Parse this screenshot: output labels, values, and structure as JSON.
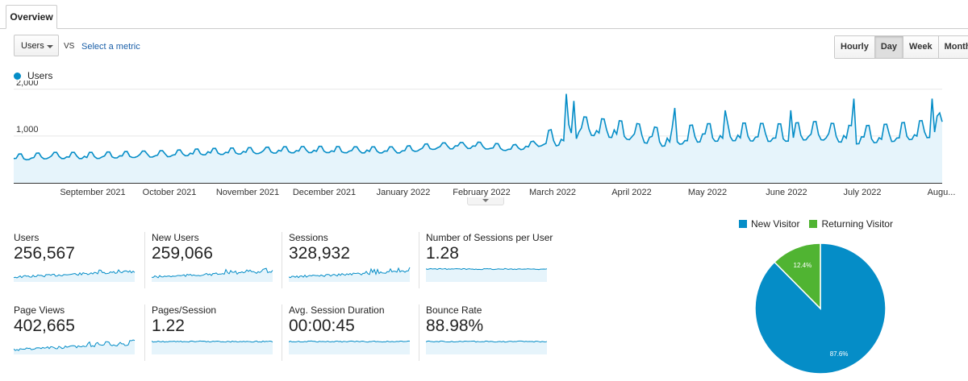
{
  "tab": {
    "label": "Overview"
  },
  "toolbar": {
    "metric_select": "Users",
    "vs_label": "VS",
    "select_metric_link": "Select a metric",
    "granularity": [
      "Hourly",
      "Day",
      "Week",
      "Month"
    ],
    "active_granularity": "Day"
  },
  "colors": {
    "primary": "#058dc7",
    "area": "#e6f4fb",
    "returning": "#50b432"
  },
  "chart_data": [
    {
      "type": "area",
      "series": [
        {
          "name": "Users"
        }
      ],
      "yticks": [
        "2,000",
        "1,000"
      ],
      "ytick_values": [
        2000,
        1000
      ],
      "ylim": [
        0,
        2100
      ],
      "x_labels": [
        "September 2021",
        "October 2021",
        "November 2021",
        "December 2021",
        "January 2022",
        "February 2022",
        "March 2022",
        "April 2022",
        "May 2022",
        "June 2022",
        "July 2022",
        "Augu..."
      ],
      "points": [
        [
          "2021-08-01",
          520
        ],
        [
          "2021-08-15",
          560
        ],
        [
          "2021-09-01",
          560
        ],
        [
          "2021-09-15",
          580
        ],
        [
          "2021-10-01",
          600
        ],
        [
          "2021-10-15",
          640
        ],
        [
          "2021-11-01",
          660
        ],
        [
          "2021-11-15",
          680
        ],
        [
          "2021-12-01",
          690
        ],
        [
          "2021-12-15",
          680
        ],
        [
          "2022-01-01",
          680
        ],
        [
          "2022-01-15",
          760
        ],
        [
          "2022-02-01",
          780
        ],
        [
          "2022-02-15",
          720
        ],
        [
          "2022-03-01",
          860
        ],
        [
          "2022-03-10",
          1000
        ],
        [
          "2022-03-15",
          1150
        ],
        [
          "2022-04-01",
          1050
        ],
        [
          "2022-04-15",
          900
        ],
        [
          "2022-05-01",
          1000
        ],
        [
          "2022-05-15",
          1020
        ],
        [
          "2022-06-01",
          1000
        ],
        [
          "2022-06-15",
          1050
        ],
        [
          "2022-07-01",
          950
        ],
        [
          "2022-07-15",
          1000
        ],
        [
          "2022-08-01",
          1100
        ],
        [
          "2022-08-04",
          1300
        ]
      ],
      "peaks": [
        [
          "2022-03-08",
          1900
        ],
        [
          "2022-03-11",
          1750
        ],
        [
          "2022-04-20",
          1600
        ],
        [
          "2022-05-10",
          1550
        ],
        [
          "2022-06-05",
          1550
        ],
        [
          "2022-06-30",
          1800
        ],
        [
          "2022-07-31",
          1800
        ]
      ]
    },
    {
      "type": "pie",
      "series": [
        {
          "name": "New Visitor",
          "value": 87.6,
          "label": "87.6%",
          "color": "#058dc7"
        },
        {
          "name": "Returning Visitor",
          "value": 12.4,
          "label": "12.4%",
          "color": "#50b432"
        }
      ]
    }
  ],
  "stats": [
    {
      "label": "Users",
      "value": "256,567"
    },
    {
      "label": "New Users",
      "value": "259,066"
    },
    {
      "label": "Sessions",
      "value": "328,932"
    },
    {
      "label": "Number of Sessions per User",
      "value": "1.28"
    },
    {
      "label": "Page Views",
      "value": "402,665"
    },
    {
      "label": "Pages/Session",
      "value": "1.22"
    },
    {
      "label": "Avg. Session Duration",
      "value": "00:00:45"
    },
    {
      "label": "Bounce Rate",
      "value": "88.98%"
    }
  ],
  "sparklines": [
    "rising",
    "rising",
    "rising",
    "flat",
    "rising",
    "flat",
    "flat",
    "flat"
  ]
}
